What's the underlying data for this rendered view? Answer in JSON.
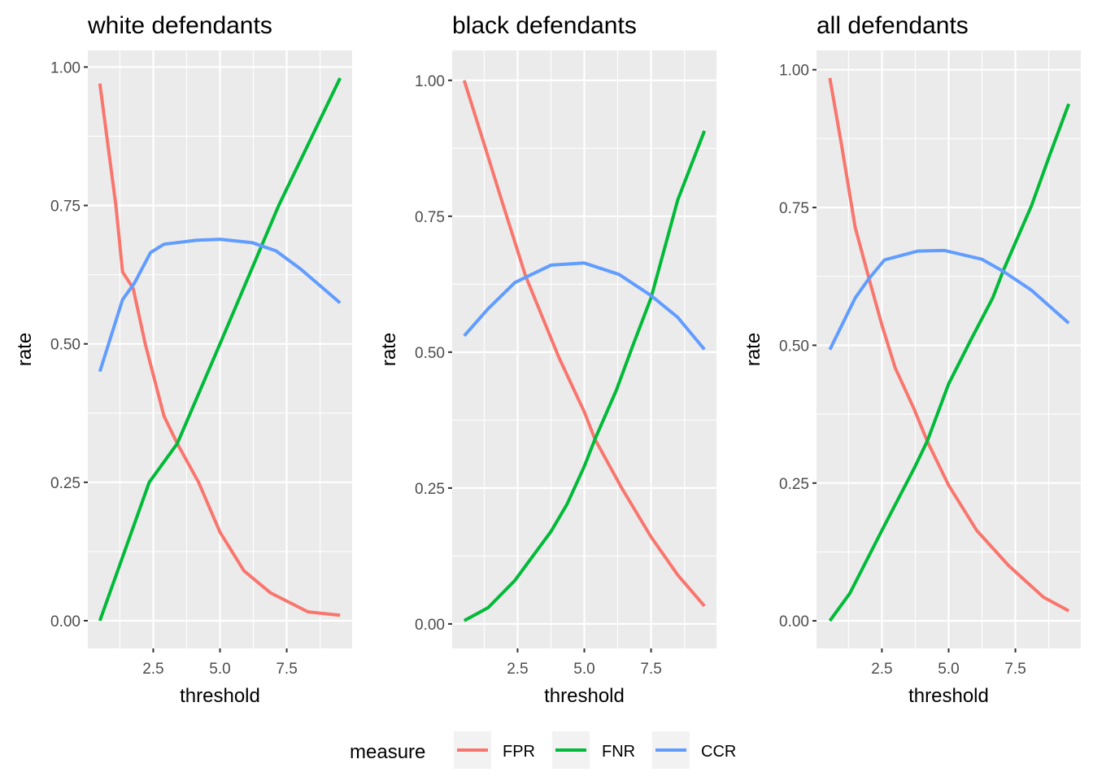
{
  "chart_data": [
    {
      "type": "line",
      "title": "white defendants",
      "xlabel": "threshold",
      "ylabel": "rate",
      "xlim": [
        0.05,
        9.95
      ],
      "ylim": [
        -0.05,
        1.03
      ],
      "xticks": [
        2.5,
        5.0,
        7.5
      ],
      "xtick_labels": [
        "2.5",
        "5.0",
        "7.5"
      ],
      "yticks": [
        0,
        0.25,
        0.5,
        0.75,
        1.0
      ],
      "ytick_labels": [
        "0.00",
        "0.25",
        "0.50",
        "0.75",
        "1.00"
      ],
      "grid": true,
      "series": [
        {
          "name": "FPR",
          "x": [
            0.5,
            1.1,
            1.35,
            1.75,
            2.2,
            2.9,
            3.4,
            4.2,
            5.0,
            5.9,
            6.9,
            8.3,
            9.5
          ],
          "y": [
            0.97,
            0.75,
            0.63,
            0.6,
            0.5,
            0.37,
            0.32,
            0.25,
            0.16,
            0.09,
            0.05,
            0.016,
            0.01
          ]
        },
        {
          "name": "FNR",
          "x": [
            0.5,
            2.35,
            3.4,
            5.0,
            7.2,
            9.5
          ],
          "y": [
            0.0,
            0.25,
            0.32,
            0.5,
            0.75,
            0.98
          ]
        },
        {
          "name": "CCR",
          "x": [
            0.5,
            1.35,
            1.8,
            2.4,
            2.9,
            4.1,
            5.0,
            6.2,
            7.1,
            8.0,
            9.5
          ],
          "y": [
            0.45,
            0.58,
            0.61,
            0.665,
            0.68,
            0.687,
            0.689,
            0.683,
            0.668,
            0.636,
            0.574
          ]
        }
      ]
    },
    {
      "type": "line",
      "title": "black defendants",
      "xlabel": "threshold",
      "ylabel": "rate",
      "xlim": [
        0.05,
        9.95
      ],
      "ylim": [
        -0.045,
        1.055
      ],
      "xticks": [
        2.5,
        5.0,
        7.5
      ],
      "xtick_labels": [
        "2.5",
        "5.0",
        "7.5"
      ],
      "yticks": [
        0,
        0.25,
        0.5,
        0.75,
        1.0
      ],
      "ytick_labels": [
        "0.00",
        "0.25",
        "0.50",
        "0.75",
        "1.00"
      ],
      "grid": true,
      "series": [
        {
          "name": "FPR",
          "x": [
            0.5,
            1.2,
            1.9,
            2.8,
            4.05,
            5.0,
            5.4,
            6.4,
            7.5,
            8.5,
            9.5
          ],
          "y": [
            1.0,
            0.89,
            0.78,
            0.64,
            0.49,
            0.39,
            0.34,
            0.25,
            0.16,
            0.09,
            0.033
          ]
        },
        {
          "name": "FNR",
          "x": [
            0.5,
            1.4,
            2.4,
            3.75,
            4.35,
            5.0,
            5.4,
            6.2,
            6.8,
            7.5,
            8.5,
            9.5
          ],
          "y": [
            0.006,
            0.03,
            0.08,
            0.17,
            0.22,
            0.29,
            0.34,
            0.43,
            0.51,
            0.6,
            0.78,
            0.907
          ]
        },
        {
          "name": "CCR",
          "x": [
            0.5,
            1.4,
            2.4,
            3.75,
            5.0,
            6.3,
            7.5,
            8.5,
            9.5
          ],
          "y": [
            0.53,
            0.58,
            0.628,
            0.66,
            0.664,
            0.643,
            0.604,
            0.564,
            0.505
          ]
        }
      ]
    },
    {
      "type": "line",
      "title": "all defendants",
      "xlabel": "threshold",
      "ylabel": "rate",
      "xlim": [
        0.05,
        9.95
      ],
      "ylim": [
        -0.05,
        1.035
      ],
      "xticks": [
        2.5,
        5.0,
        7.5
      ],
      "xtick_labels": [
        "2.5",
        "5.0",
        "7.5"
      ],
      "yticks": [
        0,
        0.25,
        0.5,
        0.75,
        1.0
      ],
      "ytick_labels": [
        "0.00",
        "0.25",
        "0.50",
        "0.75",
        "1.00"
      ],
      "grid": true,
      "series": [
        {
          "name": "FPR",
          "x": [
            0.55,
            1.0,
            1.5,
            2.05,
            2.5,
            3.0,
            3.7,
            4.2,
            5.0,
            6.05,
            7.25,
            8.55,
            9.5
          ],
          "y": [
            0.985,
            0.86,
            0.714,
            0.615,
            0.537,
            0.459,
            0.385,
            0.326,
            0.246,
            0.164,
            0.1,
            0.043,
            0.018
          ]
        },
        {
          "name": "FNR",
          "x": [
            0.55,
            1.3,
            2.5,
            3.7,
            4.2,
            5.0,
            5.8,
            6.65,
            7.05,
            8.1,
            8.8,
            9.5
          ],
          "y": [
            0.0,
            0.05,
            0.164,
            0.276,
            0.326,
            0.43,
            0.507,
            0.586,
            0.636,
            0.753,
            0.847,
            0.938
          ]
        },
        {
          "name": "CCR",
          "x": [
            0.55,
            1.5,
            2.0,
            2.6,
            3.85,
            4.85,
            6.25,
            7.05,
            8.1,
            9.5
          ],
          "y": [
            0.492,
            0.586,
            0.62,
            0.655,
            0.671,
            0.672,
            0.656,
            0.634,
            0.6,
            0.54
          ]
        }
      ]
    }
  ],
  "legend": {
    "title": "measure",
    "placement": "bottom",
    "items": [
      {
        "name": "FPR",
        "color": "#F8766D"
      },
      {
        "name": "FNR",
        "color": "#00BA38"
      },
      {
        "name": "CCR",
        "color": "#619CFF"
      }
    ]
  },
  "colors": {
    "panel_background": "#EBEBEB",
    "grid": "#FFFFFF",
    "tick_label": "#4D4D4D",
    "tick_mark": "#333333",
    "legend_key_background": "#F2F2F2"
  }
}
